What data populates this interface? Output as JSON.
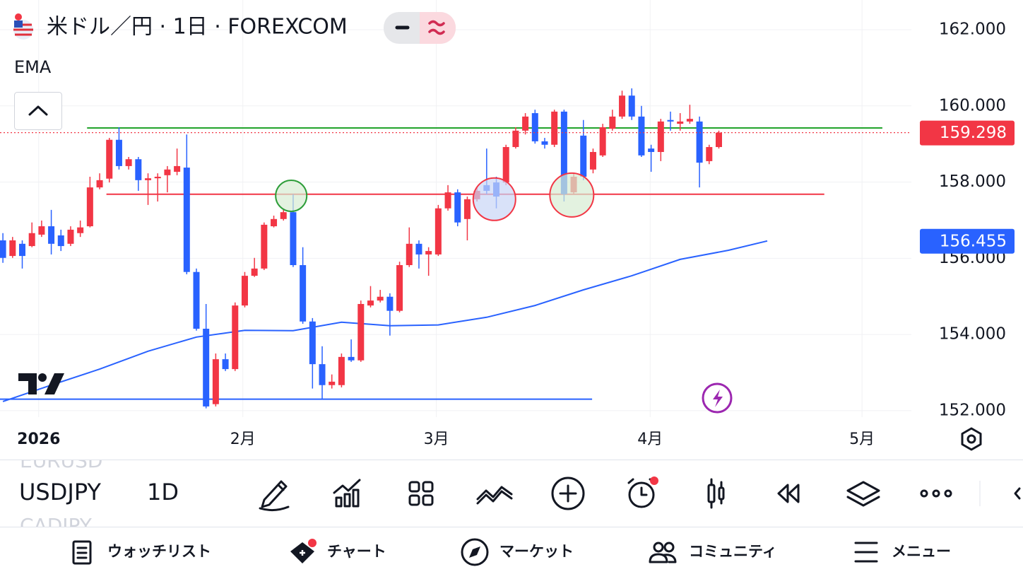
{
  "header": {
    "title": "米ドル／円 · 1日 · FOREXCOM"
  },
  "chart_data": {
    "type": "candlestick",
    "xlim": [
      -0.3,
      93.9
    ],
    "ylim": [
      151.83,
      162.78
    ],
    "yticks": [
      {
        "value": 152,
        "label": "152.000"
      },
      {
        "value": 154,
        "label": "154.000"
      },
      {
        "value": 156,
        "label": "156.000"
      },
      {
        "value": 158,
        "label": "158.000"
      },
      {
        "value": 160,
        "label": "160.000"
      },
      {
        "value": 162,
        "label": "162.000"
      }
    ],
    "xticks": [
      {
        "value": 3.7,
        "label": "2026"
      },
      {
        "value": 24.8,
        "label": "2月"
      },
      {
        "value": 44.8,
        "label": "3月"
      },
      {
        "value": 66.9,
        "label": "4月"
      },
      {
        "value": 88.8,
        "label": "5月"
      }
    ],
    "grid": true,
    "up_color": "#f23645",
    "down_color": "#2962ff",
    "ohlc": {
      "open": [
        156.47,
        156.06,
        156.38,
        156.32,
        156.62,
        156.84,
        156.6,
        156.38,
        156.66,
        156.84,
        157.86,
        158.09,
        159.11,
        158.42,
        158.6,
        158.05,
        158.1,
        158.18,
        158.27,
        158.38,
        155.64,
        154.15,
        152.17,
        153.35,
        153.09,
        154.76,
        155.54,
        155.73,
        156.84,
        157.03,
        157.21,
        155.82,
        154.34,
        153.22,
        152.67,
        152.67,
        153.41,
        153.32,
        154.76,
        154.89,
        154.99,
        154.62,
        155.82,
        156.38,
        156.1,
        156.1,
        157.31,
        157.73,
        157.03,
        157.55,
        157.92,
        157.99,
        157.99,
        158.92,
        159.35,
        159.81,
        159.07,
        158.98,
        159.85,
        157.73,
        159.22,
        158.33,
        158.7,
        159.4,
        159.72,
        160.27,
        159.72,
        158.88,
        158.79,
        159.63,
        159.53,
        159.59,
        159.59,
        158.55,
        158.92
      ],
      "high": [
        156.66,
        156.56,
        156.47,
        156.94,
        156.99,
        157.27,
        156.75,
        156.84,
        156.99,
        158.14,
        158.23,
        159.16,
        159.44,
        158.66,
        158.66,
        158.23,
        158.23,
        158.42,
        158.88,
        159.25,
        155.73,
        154.8,
        153.5,
        153.5,
        154.84,
        155.64,
        156.01,
        156.94,
        157.12,
        157.31,
        157.68,
        156.29,
        154.43,
        153.69,
        152.95,
        153.5,
        153.87,
        154.89,
        155.27,
        155.17,
        155.08,
        155.91,
        156.81,
        156.47,
        156.29,
        157.4,
        157.92,
        157.81,
        157.62,
        157.86,
        158.88,
        158.14,
        158.98,
        159.44,
        159.81,
        159.9,
        159.16,
        159.9,
        159.9,
        158.23,
        159.63,
        158.88,
        159.53,
        159.9,
        160.4,
        160.46,
        160.0,
        158.98,
        159.66,
        159.85,
        159.81,
        160.03,
        159.72,
        158.98,
        159.35
      ],
      "low": [
        155.88,
        156.01,
        155.73,
        156.29,
        156.56,
        156.1,
        156.19,
        156.32,
        156.56,
        156.81,
        157.81,
        157.99,
        158.33,
        158.33,
        157.77,
        157.4,
        157.49,
        157.73,
        158.18,
        155.58,
        154.1,
        152.06,
        152.11,
        153.04,
        153.04,
        154.71,
        155.51,
        155.69,
        156.81,
        156.99,
        155.77,
        154.28,
        152.58,
        152.3,
        152.58,
        152.61,
        153.28,
        153.28,
        154.71,
        154.84,
        153.97,
        154.58,
        155.77,
        155.73,
        155.54,
        156.06,
        157.25,
        156.84,
        156.47,
        157.49,
        157.68,
        157.31,
        157.92,
        158.88,
        159.25,
        159.01,
        158.88,
        158.92,
        157.49,
        157.68,
        158.05,
        158.23,
        158.66,
        159.35,
        159.66,
        159.63,
        158.66,
        158.27,
        158.55,
        159.35,
        159.35,
        159.53,
        157.86,
        158.47,
        158.88
      ],
      "close": [
        156.01,
        156.47,
        156.06,
        156.66,
        156.84,
        156.38,
        156.32,
        156.75,
        156.81,
        157.86,
        158.05,
        159.11,
        158.42,
        158.6,
        158.05,
        158.1,
        158.14,
        158.33,
        158.42,
        155.64,
        154.15,
        152.11,
        153.35,
        153.09,
        154.76,
        155.54,
        155.73,
        156.88,
        157.03,
        157.21,
        155.82,
        154.34,
        153.22,
        152.67,
        152.76,
        153.41,
        153.32,
        154.8,
        154.89,
        154.99,
        154.62,
        155.82,
        156.38,
        156.1,
        156.19,
        157.31,
        157.73,
        156.94,
        157.55,
        157.77,
        157.77,
        157.62,
        158.92,
        159.35,
        159.72,
        159.07,
        158.98,
        159.85,
        157.68,
        158.14,
        158.14,
        158.79,
        159.44,
        159.72,
        160.27,
        159.72,
        158.7,
        158.79,
        159.59,
        159.59,
        159.59,
        159.66,
        158.51,
        158.92,
        159.298
      ]
    },
    "ema": {
      "name": "EMA",
      "color": "#2962ff",
      "x": [
        0,
        5,
        10,
        15,
        20,
        25,
        30,
        35,
        40,
        45,
        50,
        55,
        60,
        65,
        70,
        75,
        79
      ],
      "values": [
        152.24,
        152.67,
        153.09,
        153.56,
        153.93,
        154.11,
        154.1,
        154.32,
        154.23,
        154.25,
        154.45,
        154.76,
        155.17,
        155.54,
        155.97,
        156.21,
        156.455
      ]
    },
    "drawings": {
      "hlines": [
        {
          "color": "#22a32b",
          "value": 159.42,
          "x": [
            8.7,
            90.9
          ]
        },
        {
          "color": "#f23645",
          "value": 157.68,
          "x": [
            10.7,
            84.9
          ]
        },
        {
          "color": "#2962ff",
          "value": 152.3,
          "x": [
            -0.3,
            60.9
          ]
        }
      ],
      "circles": [
        {
          "color": "#2e9e3a",
          "fill": "#d7ecd3",
          "x": 29.8,
          "value": 157.64
        },
        {
          "color": "#f23645",
          "fill": "#c9d6f6",
          "x": 50.8,
          "value": 157.55
        },
        {
          "color": "#f23645",
          "fill": "#d7ecd3",
          "x": 58.8,
          "value": 157.66
        }
      ]
    }
  },
  "toolbar": {
    "symbol": "USDJPY",
    "interval": "1D",
    "prev_symbol": "EURUSD",
    "next_symbol": "CADJPY"
  },
  "nav": [
    "ウォッチリスト",
    "チャート",
    "マーケット",
    "コミュニティ",
    "メニュー"
  ]
}
